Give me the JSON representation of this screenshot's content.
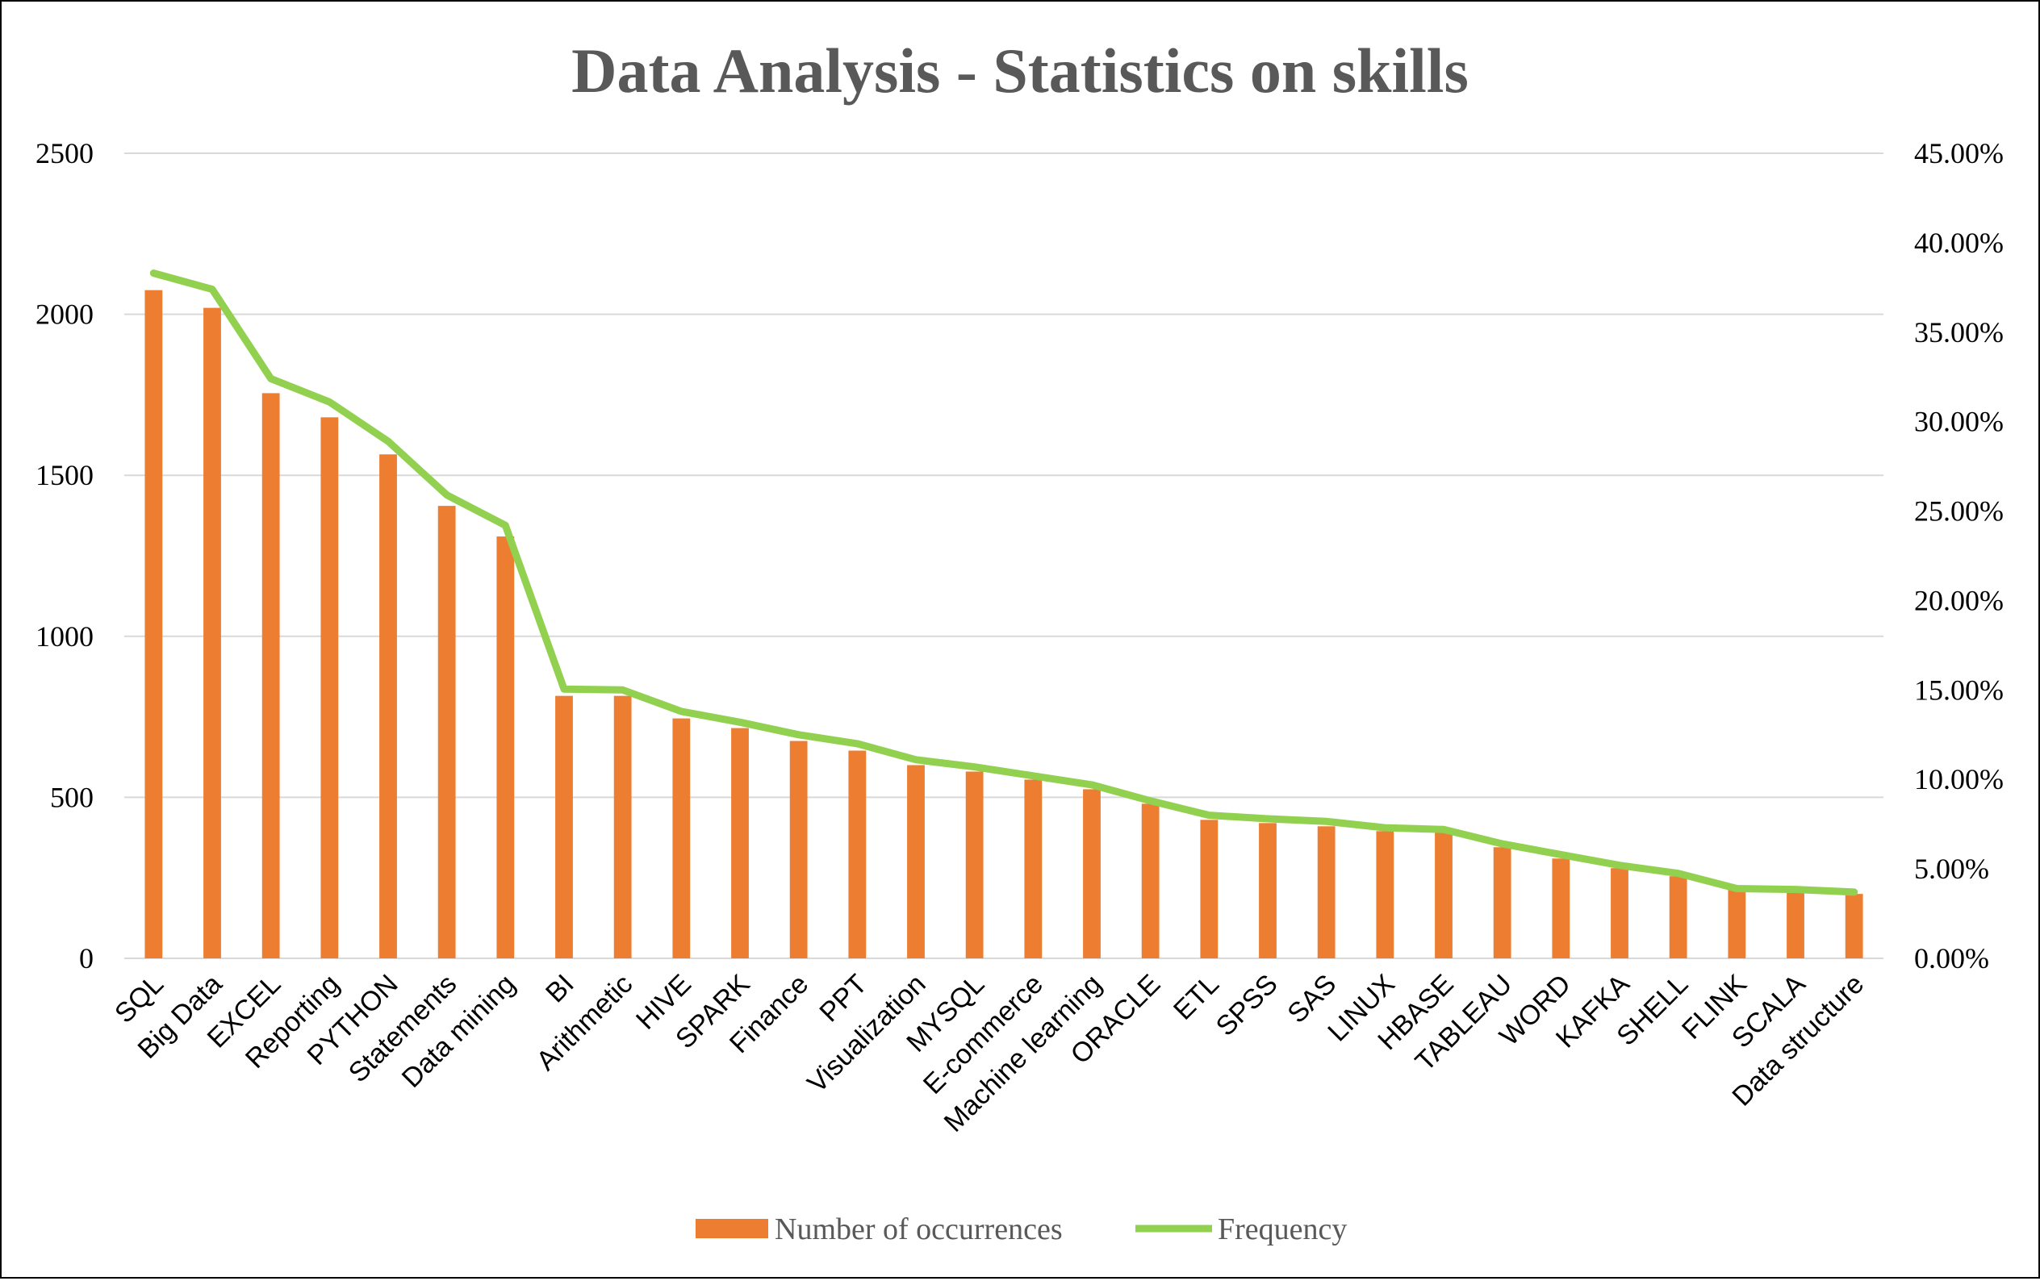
{
  "chart_data": {
    "type": "bar",
    "title": "Data Analysis - Statistics on skills",
    "categories": [
      "SQL",
      "Big Data",
      "EXCEL",
      "Reporting",
      "PYTHON",
      "Statements",
      "Data mining",
      "BI",
      "Arithmetic",
      "HIVE",
      "SPARK",
      "Finance",
      "PPT",
      "Visualization",
      "MYSQL",
      "E-commerce",
      "Machine learning",
      "ORACLE",
      "ETL",
      "SPSS",
      "SAS",
      "LINUX",
      "HBASE",
      "TABLEAU",
      "WORD",
      "KAFKA",
      "SHELL",
      "FLINK",
      "SCALA",
      "Data structure"
    ],
    "series": [
      {
        "name": "Number of occurrences",
        "type": "bar",
        "axis": "left",
        "color": "#ed7d31",
        "values": [
          2075,
          2020,
          1755,
          1680,
          1565,
          1405,
          1310,
          815,
          815,
          745,
          715,
          675,
          645,
          600,
          580,
          555,
          525,
          480,
          430,
          420,
          410,
          395,
          390,
          345,
          310,
          280,
          255,
          215,
          210,
          200
        ]
      },
      {
        "name": "Frequency",
        "type": "line",
        "axis": "right",
        "color": "#92d050",
        "values": [
          0.383,
          0.374,
          0.324,
          0.311,
          0.289,
          0.259,
          0.242,
          0.1505,
          0.15,
          0.138,
          0.132,
          0.125,
          0.12,
          0.111,
          0.107,
          0.102,
          0.097,
          0.088,
          0.08,
          0.078,
          0.0765,
          0.073,
          0.072,
          0.064,
          0.058,
          0.052,
          0.0475,
          0.039,
          0.0385,
          0.037
        ]
      }
    ],
    "y_left": {
      "min": 0,
      "max": 2500,
      "ticks": [
        0,
        500,
        1000,
        1500,
        2000,
        2500
      ]
    },
    "y_right": {
      "min": 0,
      "max": 0.45,
      "ticks": [
        "0.00%",
        "5.00%",
        "10.00%",
        "15.00%",
        "20.00%",
        "25.00%",
        "30.00%",
        "35.00%",
        "40.00%",
        "45.00%"
      ]
    },
    "grid": true,
    "legend_position": "bottom"
  }
}
